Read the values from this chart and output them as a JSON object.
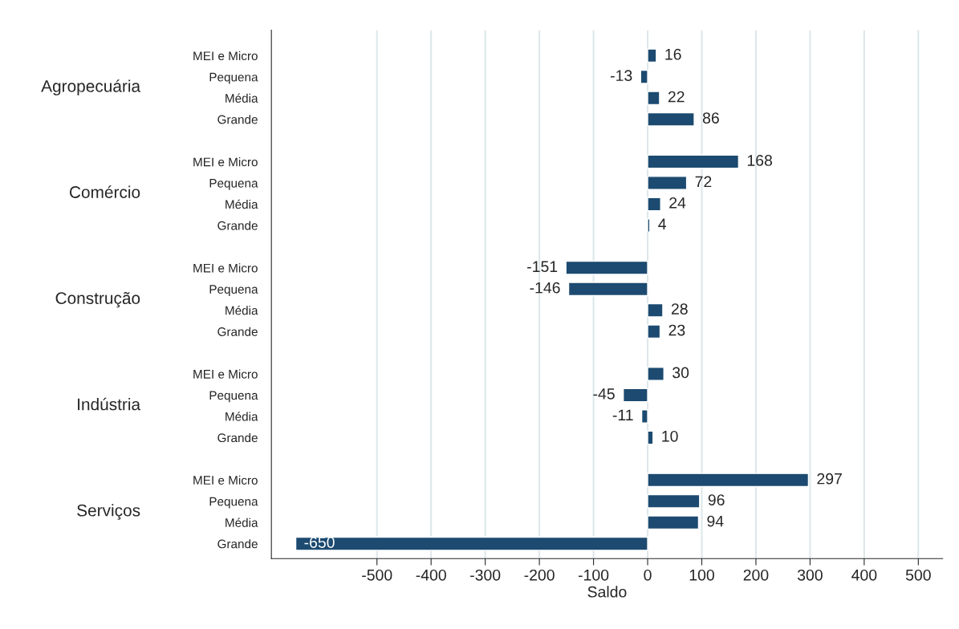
{
  "chart_data": {
    "type": "bar",
    "orientation": "horizontal",
    "xlabel": "Saldo",
    "categories": [
      "MEI e Micro",
      "Pequena",
      "Média",
      "Grande",
      null,
      "MEI e Micro",
      "Pequena",
      "Média",
      "Grande",
      null,
      "MEI e Micro",
      "Pequena",
      "Média",
      "Grande",
      null,
      "MEI e Micro",
      "Pequena",
      "Média",
      "Grande",
      null,
      "MEI e Micro",
      "Pequena",
      "Média",
      "Grande"
    ],
    "values": [
      16,
      -13,
      22,
      86,
      null,
      168,
      72,
      24,
      4,
      null,
      -151,
      -146,
      28,
      23,
      null,
      30,
      -45,
      -11,
      10,
      null,
      297,
      96,
      94,
      -650
    ],
    "color": "#1c4a70",
    "annotations": [
      "Agropecuária",
      "Comércio",
      "Construção",
      "Indústria",
      "Serviços"
    ],
    "xlim": [
      -695,
      545
    ],
    "xticks": [
      -500,
      -400,
      -300,
      -200,
      -100,
      0,
      100,
      200,
      300,
      400,
      500
    ],
    "data_labels": true,
    "grid": "x",
    "legend": false
  }
}
